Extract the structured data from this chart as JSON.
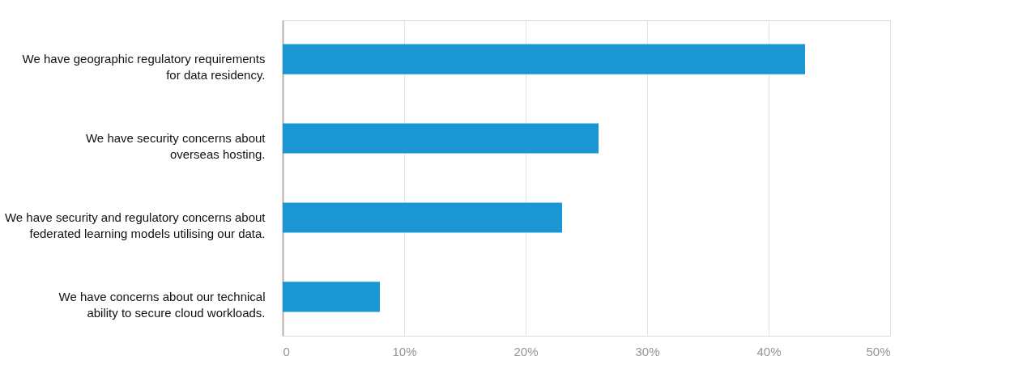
{
  "chart_data": {
    "type": "bar",
    "orientation": "horizontal",
    "categories": [
      "We have geographic regulatory requirements\nfor data residency.",
      "We have security concerns about\noverseas hosting.",
      "We have security and regulatory concerns about\nfederated learning models utilising our data.",
      "We have concerns about our technical\nability to secure cloud workloads."
    ],
    "values": [
      43,
      26,
      23,
      8
    ],
    "color": "#1a96d4",
    "xlim": [
      0,
      50
    ],
    "xticks": [
      0,
      {
        "value": 10,
        "label": "10%"
      },
      {
        "value": 20,
        "label": "20%"
      },
      {
        "value": 30,
        "label": "30%"
      },
      {
        "value": 40,
        "label": "40%"
      },
      {
        "value": 50,
        "label": "50%"
      }
    ],
    "grid": "x"
  }
}
